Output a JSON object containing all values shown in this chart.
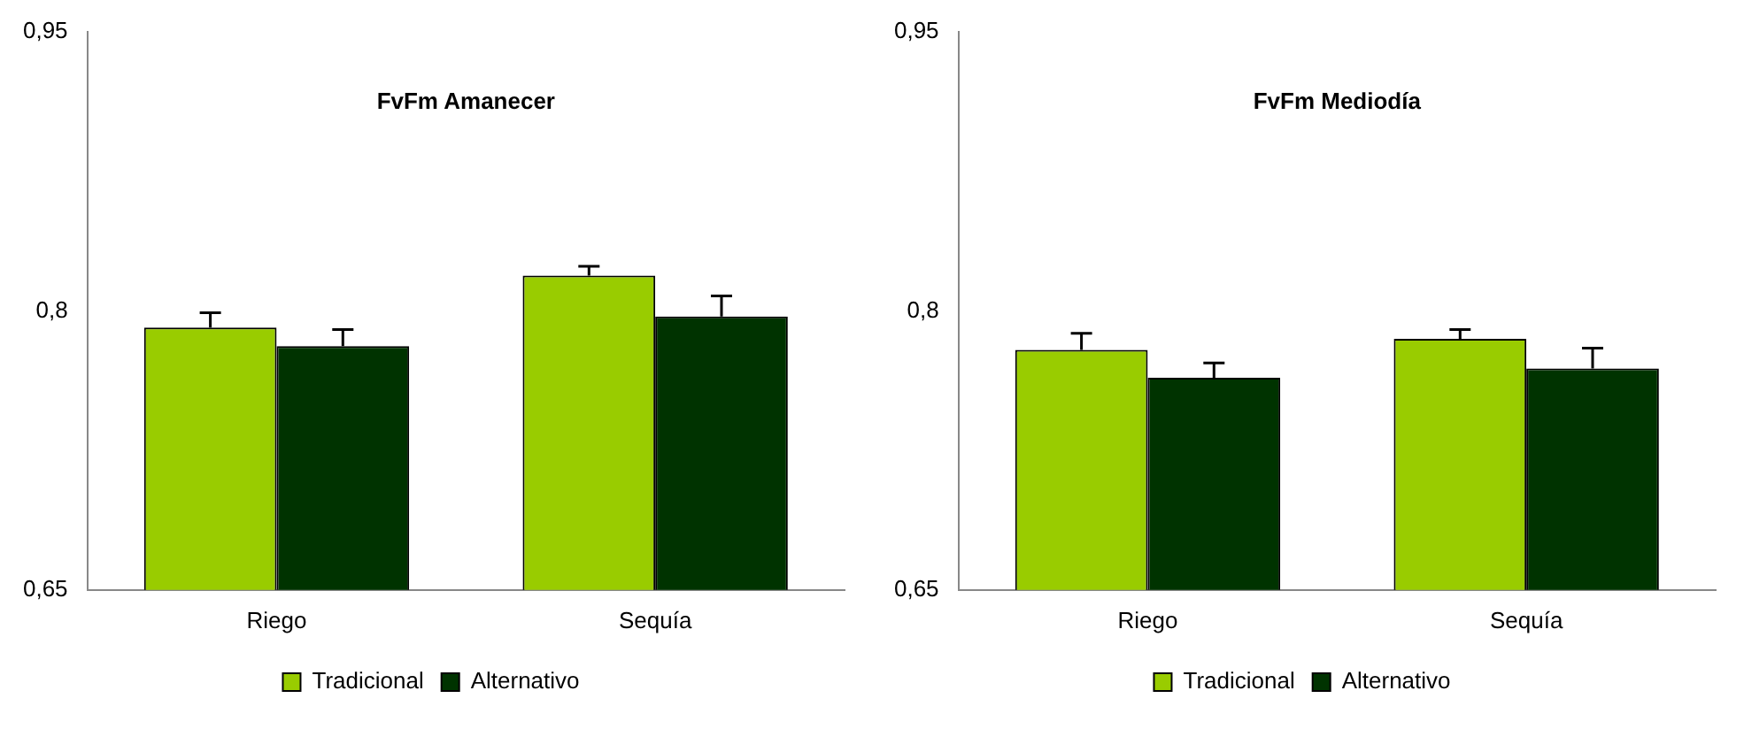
{
  "chart_data": [
    {
      "type": "bar",
      "title": "FvFm Amanecer",
      "categories": [
        "Riego",
        "Sequía"
      ],
      "series": [
        {
          "name": "Tradicional",
          "color": "#99cc00",
          "values": [
            0.791,
            0.819
          ],
          "errors": [
            0.008,
            0.005
          ]
        },
        {
          "name": "Alternativo",
          "color": "#003300",
          "values": [
            0.781,
            0.797
          ],
          "errors": [
            0.009,
            0.011
          ]
        }
      ],
      "ylim": [
        0.65,
        0.95
      ],
      "yticks": [
        {
          "value": 0.65,
          "label": "0,65"
        },
        {
          "value": 0.8,
          "label": "0,8"
        },
        {
          "value": 0.95,
          "label": "0,95"
        }
      ],
      "grid": false,
      "legend": "bottom"
    },
    {
      "type": "bar",
      "title": "FvFm Mediodía",
      "categories": [
        "Riego",
        "Sequía"
      ],
      "series": [
        {
          "name": "Tradicional",
          "color": "#99cc00",
          "values": [
            0.779,
            0.785
          ],
          "errors": [
            0.009,
            0.005
          ]
        },
        {
          "name": "Alternativo",
          "color": "#003300",
          "values": [
            0.764,
            0.769
          ],
          "errors": [
            0.008,
            0.011
          ]
        }
      ],
      "ylim": [
        0.65,
        0.95
      ],
      "yticks": [
        {
          "value": 0.65,
          "label": "0,65"
        },
        {
          "value": 0.8,
          "label": "0,8"
        },
        {
          "value": 0.95,
          "label": "0,95"
        }
      ],
      "grid": false,
      "legend": "bottom"
    }
  ]
}
